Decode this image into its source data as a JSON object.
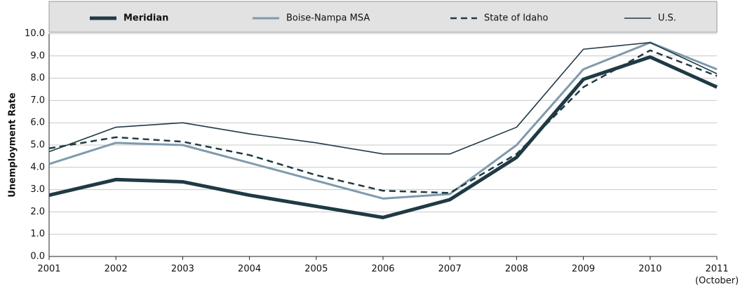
{
  "chart_data": {
    "type": "line",
    "y_label": "Unemployment Rate",
    "categories": [
      "2001",
      "2002",
      "2003",
      "2004",
      "2005",
      "2006",
      "2007",
      "2008",
      "2009",
      "2010",
      "2011"
    ],
    "x_note": "(October)",
    "ylim": [
      0,
      10
    ],
    "yticks": [
      {
        "value": 0,
        "label": "0.0"
      },
      {
        "value": 1,
        "label": "1.0"
      },
      {
        "value": 2,
        "label": "2.0"
      },
      {
        "value": 3,
        "label": "3.0"
      },
      {
        "value": 4,
        "label": "4.0"
      },
      {
        "value": 5,
        "label": "5.0"
      },
      {
        "value": 6,
        "label": "6.0"
      },
      {
        "value": 7,
        "label": "7.0"
      },
      {
        "value": 8,
        "label": "8.0"
      },
      {
        "value": 9,
        "label": "9.0"
      },
      {
        "value": 10,
        "label": "10.0"
      }
    ],
    "grid": true,
    "legend": "top",
    "series": [
      {
        "name": "Meridian",
        "color": "#1f3a44",
        "line_style": "thick",
        "values": [
          2.75,
          3.45,
          3.35,
          2.75,
          2.25,
          1.75,
          2.55,
          4.45,
          7.95,
          8.95,
          7.6
        ]
      },
      {
        "name": "Boise-Nampa MSA",
        "color": "#7f9aad",
        "line_style": "medium",
        "values": [
          4.15,
          5.1,
          5.0,
          4.2,
          3.4,
          2.6,
          2.8,
          5.0,
          8.4,
          9.6,
          8.4
        ]
      },
      {
        "name": "State of Idaho",
        "color": "#1f3a44",
        "line_style": "dashed",
        "values": [
          4.85,
          5.35,
          5.15,
          4.55,
          3.65,
          2.95,
          2.85,
          4.6,
          7.6,
          9.25,
          8.1
        ]
      },
      {
        "name": "U.S.",
        "color": "#1f3a44",
        "line_style": "thin",
        "values": [
          4.7,
          5.8,
          6.0,
          5.5,
          5.1,
          4.6,
          4.6,
          5.8,
          9.3,
          9.6,
          8.2
        ]
      }
    ]
  }
}
